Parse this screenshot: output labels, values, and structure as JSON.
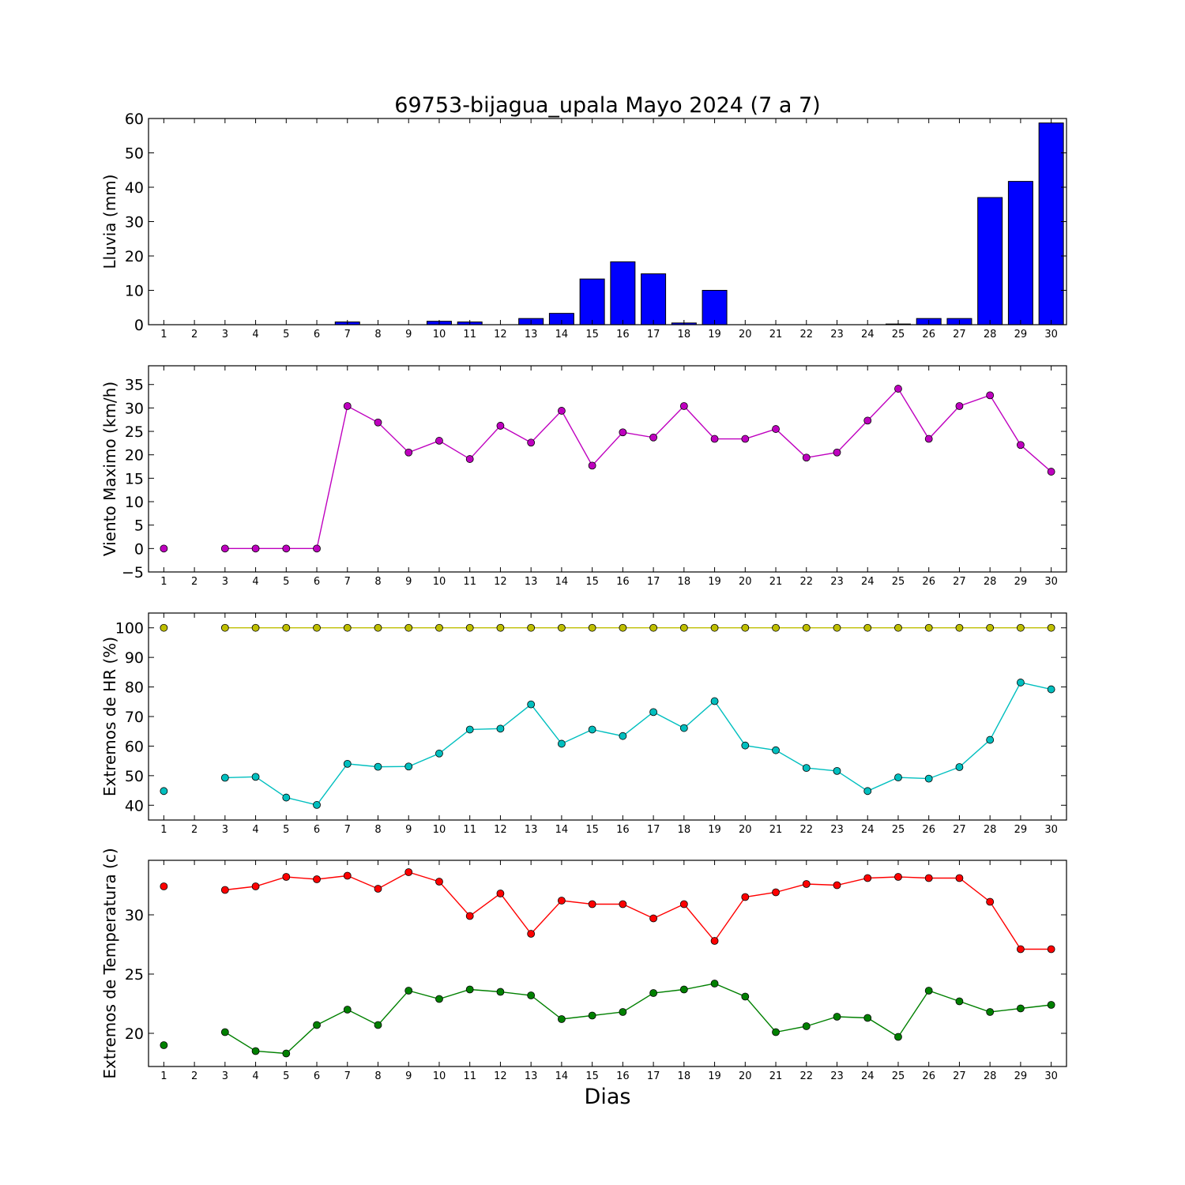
{
  "chart_data": [
    {
      "type": "bar",
      "title": "69753-bijagua_upala Mayo 2024  (7 a 7)",
      "ylabel": "Lluvia (mm)",
      "ylim": [
        0,
        60
      ],
      "yticks": [
        0,
        10,
        20,
        30,
        40,
        50,
        60
      ],
      "x": [
        1,
        2,
        3,
        4,
        5,
        6,
        7,
        8,
        9,
        10,
        11,
        12,
        13,
        14,
        15,
        16,
        17,
        18,
        19,
        20,
        21,
        22,
        23,
        24,
        25,
        26,
        27,
        28,
        29,
        30
      ],
      "values": [
        0,
        0,
        0,
        0,
        0,
        0,
        0.8,
        0,
        0,
        1.0,
        0.8,
        0,
        1.8,
        3.3,
        13.3,
        18.3,
        14.8,
        0.5,
        10.0,
        0,
        0,
        0,
        0,
        0,
        0.2,
        1.8,
        1.8,
        37.0,
        41.7,
        58.7
      ],
      "color": "#0000ff"
    },
    {
      "type": "line",
      "ylabel": "Viento Maximo (km/h)",
      "ylim": [
        -5,
        39
      ],
      "yticks": [
        -5,
        0,
        5,
        10,
        15,
        20,
        25,
        30,
        35
      ],
      "x": [
        1,
        2,
        3,
        4,
        5,
        6,
        7,
        8,
        9,
        10,
        11,
        12,
        13,
        14,
        15,
        16,
        17,
        18,
        19,
        20,
        21,
        22,
        23,
        24,
        25,
        26,
        27,
        28,
        29,
        30
      ],
      "series": [
        {
          "values": [
            0,
            null,
            0,
            0,
            0,
            0,
            30.4,
            26.9,
            20.5,
            23.0,
            19.1,
            26.2,
            22.6,
            29.4,
            17.7,
            24.8,
            23.7,
            30.4,
            23.4,
            23.4,
            25.5,
            19.4,
            20.5,
            27.3,
            34.1,
            23.4,
            30.4,
            32.7,
            22.1,
            16.4
          ],
          "color": "#bf00bf"
        }
      ]
    },
    {
      "type": "line",
      "ylabel": "Extremos de HR (%)",
      "ylim": [
        35,
        105
      ],
      "yticks": [
        40,
        50,
        60,
        70,
        80,
        90,
        100
      ],
      "x": [
        1,
        2,
        3,
        4,
        5,
        6,
        7,
        8,
        9,
        10,
        11,
        12,
        13,
        14,
        15,
        16,
        17,
        18,
        19,
        20,
        21,
        22,
        23,
        24,
        25,
        26,
        27,
        28,
        29,
        30
      ],
      "series": [
        {
          "values": [
            100,
            null,
            100,
            100,
            100,
            100,
            100,
            100,
            100,
            100,
            100,
            100,
            100,
            100,
            100,
            100,
            100,
            100,
            100,
            100,
            100,
            100,
            100,
            100,
            100,
            100,
            100,
            100,
            100,
            100
          ],
          "color": "#bfbf00"
        },
        {
          "values": [
            44.8,
            null,
            49.3,
            49.6,
            42.6,
            40.1,
            54.0,
            53.0,
            53.1,
            57.5,
            65.6,
            65.9,
            74.1,
            60.8,
            65.6,
            63.4,
            71.5,
            66.1,
            75.2,
            60.2,
            58.6,
            52.6,
            51.6,
            44.8,
            49.4,
            49.0,
            52.9,
            62.1,
            81.5,
            79.2
          ],
          "color": "#00bfbf"
        }
      ]
    },
    {
      "type": "line",
      "ylabel": "Extremos de Temperatura (c)",
      "xlabel": "Dias",
      "ylim": [
        17.2,
        34.6
      ],
      "yticks": [
        20,
        25,
        30
      ],
      "x": [
        1,
        2,
        3,
        4,
        5,
        6,
        7,
        8,
        9,
        10,
        11,
        12,
        13,
        14,
        15,
        16,
        17,
        18,
        19,
        20,
        21,
        22,
        23,
        24,
        25,
        26,
        27,
        28,
        29,
        30
      ],
      "series": [
        {
          "values": [
            32.4,
            null,
            32.1,
            32.4,
            33.2,
            33.0,
            33.3,
            32.2,
            33.6,
            32.8,
            29.9,
            31.8,
            28.4,
            31.2,
            30.9,
            30.9,
            29.7,
            30.9,
            27.8,
            31.5,
            31.9,
            32.6,
            32.5,
            33.1,
            33.2,
            33.1,
            33.1,
            31.1,
            27.1,
            27.1
          ],
          "color": "#ff0000"
        },
        {
          "values": [
            19.0,
            null,
            20.1,
            18.5,
            18.3,
            20.7,
            22.0,
            20.7,
            23.6,
            22.9,
            23.7,
            23.5,
            23.2,
            21.2,
            21.5,
            21.8,
            23.4,
            23.7,
            24.2,
            23.1,
            20.1,
            20.6,
            21.4,
            21.3,
            19.7,
            23.6,
            22.7,
            21.8,
            22.1,
            22.4
          ],
          "color": "#008000"
        }
      ]
    }
  ]
}
